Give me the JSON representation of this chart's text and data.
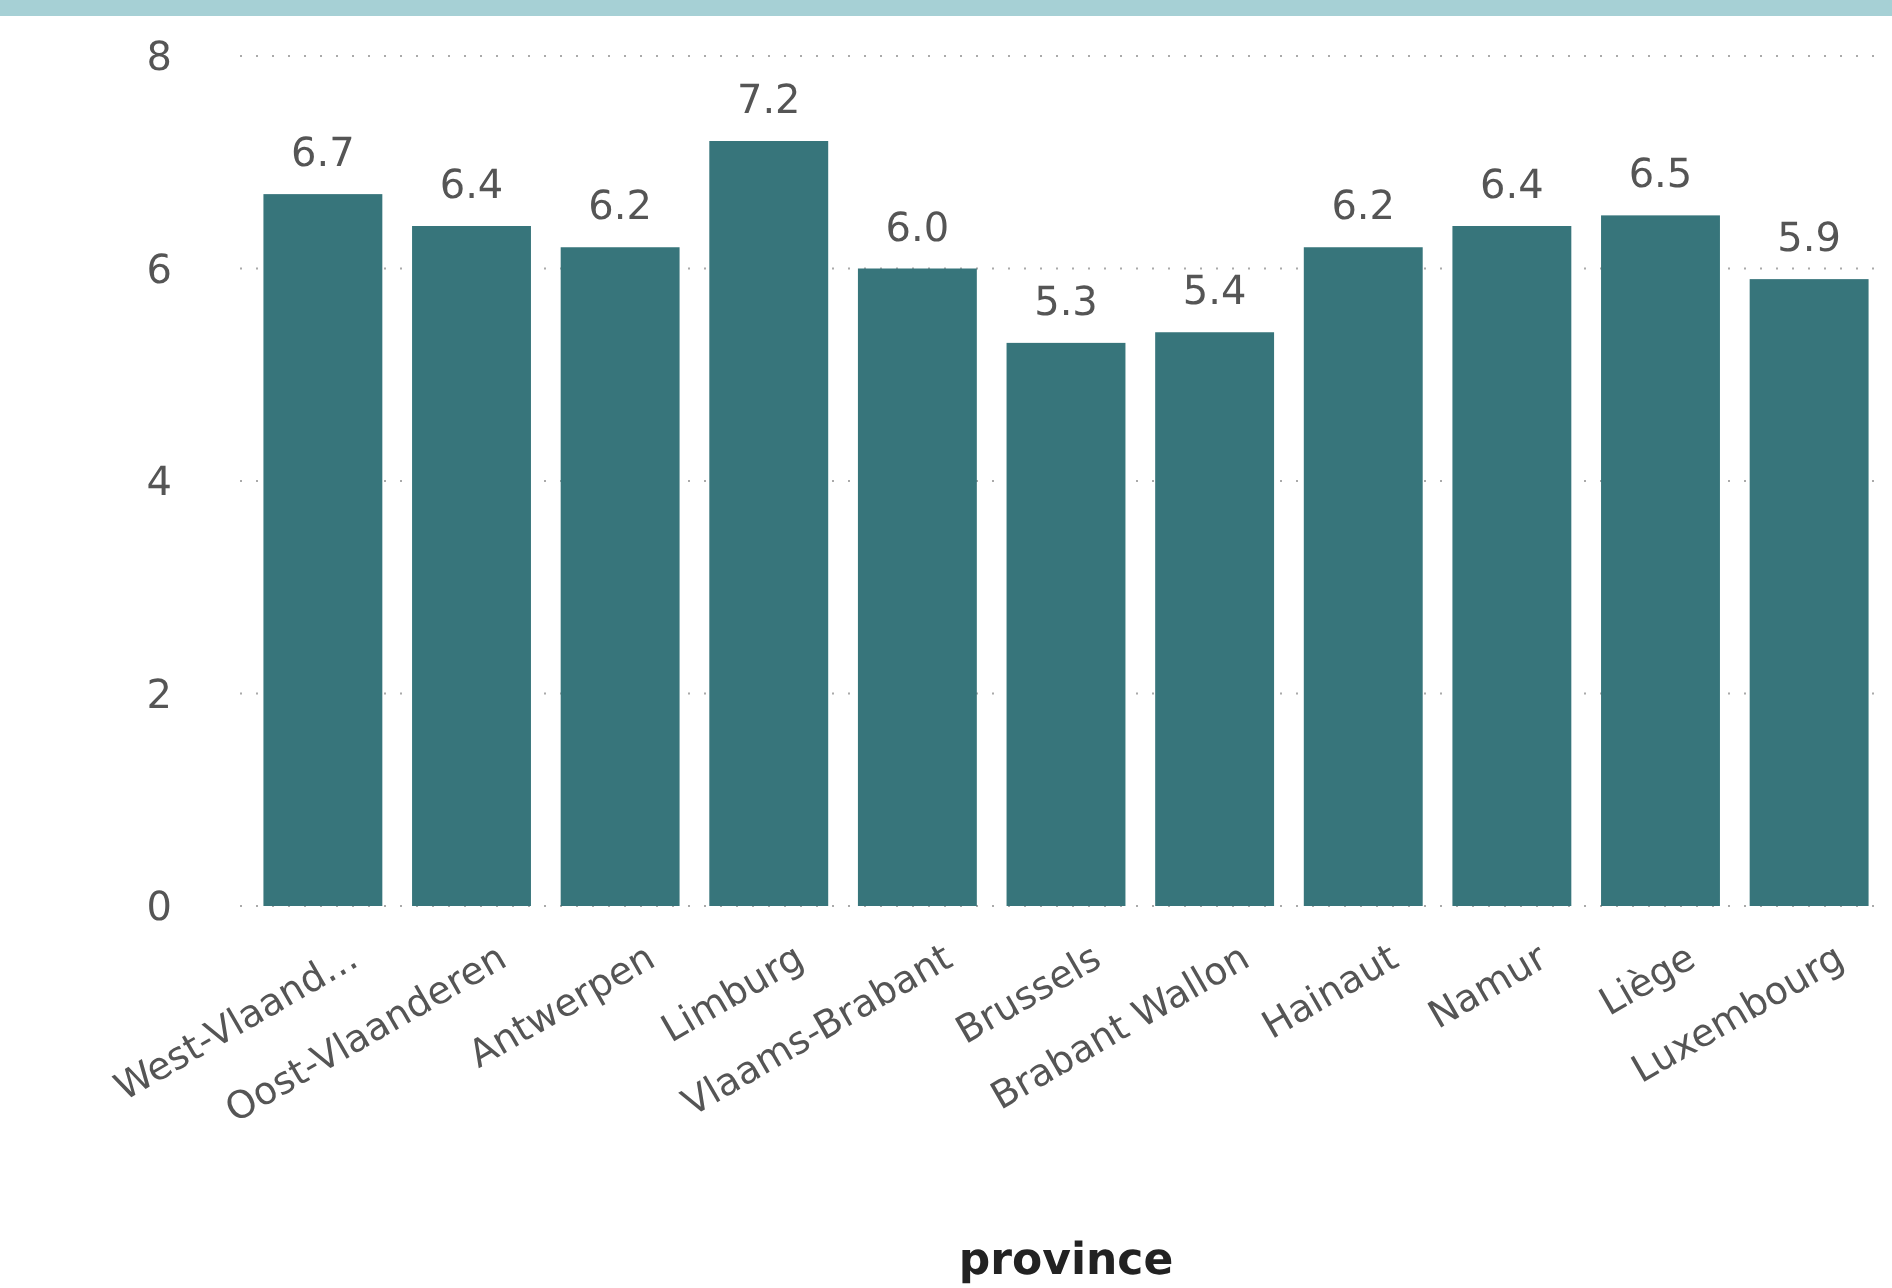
{
  "chart_data": {
    "type": "bar",
    "xlabel": "province",
    "categories": [
      "West-Vlaand...",
      "Oost-Vlaanderen",
      "Antwerpen",
      "Limburg",
      "Vlaams-Brabant",
      "Brussels",
      "Brabant Wallon",
      "Hainaut",
      "Namur",
      "Liège",
      "Luxembourg"
    ],
    "values": [
      6.7,
      6.4,
      6.2,
      7.2,
      6.0,
      5.3,
      5.4,
      6.2,
      6.4,
      6.5,
      5.9
    ],
    "value_labels": [
      "6.7",
      "6.4",
      "6.2",
      "7.2",
      "6.0",
      "5.3",
      "5.4",
      "6.2",
      "6.4",
      "6.5",
      "5.9"
    ],
    "color": "#37757b",
    "ylim": [
      0,
      8
    ],
    "yticks": [
      0,
      2,
      4,
      6,
      8
    ],
    "grid": "y"
  }
}
